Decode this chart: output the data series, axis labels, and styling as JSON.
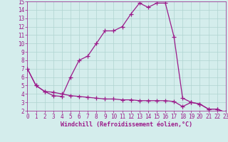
{
  "line1_x": [
    0,
    1,
    2,
    3,
    4,
    5,
    6,
    7,
    8,
    9,
    10,
    11,
    12,
    13,
    14,
    15,
    16,
    17,
    18,
    19,
    20,
    21,
    22,
    23
  ],
  "line1_y": [
    7.0,
    5.0,
    4.3,
    3.8,
    3.7,
    6.0,
    8.0,
    8.5,
    10.0,
    11.5,
    11.5,
    12.0,
    13.5,
    14.8,
    14.3,
    14.8,
    14.8,
    10.8,
    3.5,
    3.0,
    2.8,
    2.2,
    2.2,
    1.8
  ],
  "line2_x": [
    0,
    1,
    2,
    3,
    4,
    5,
    6,
    7,
    8,
    9,
    10,
    11,
    12,
    13,
    14,
    15,
    16,
    17,
    18,
    19,
    20,
    21,
    22,
    23
  ],
  "line2_y": [
    7.0,
    5.0,
    4.3,
    4.2,
    4.0,
    3.8,
    3.7,
    3.6,
    3.5,
    3.4,
    3.4,
    3.3,
    3.3,
    3.2,
    3.2,
    3.2,
    3.2,
    3.1,
    2.5,
    3.0,
    2.8,
    2.2,
    2.2,
    1.8
  ],
  "line_color": "#9b1a8a",
  "bg_color": "#d4edec",
  "grid_color": "#afd4d0",
  "xlabel": "Windchill (Refroidissement éolien,°C)",
  "ylim": [
    2,
    15
  ],
  "xlim": [
    0,
    23
  ],
  "yticks": [
    2,
    3,
    4,
    5,
    6,
    7,
    8,
    9,
    10,
    11,
    12,
    13,
    14,
    15
  ],
  "xticks": [
    0,
    1,
    2,
    3,
    4,
    5,
    6,
    7,
    8,
    9,
    10,
    11,
    12,
    13,
    14,
    15,
    16,
    17,
    18,
    19,
    20,
    21,
    22,
    23
  ],
  "line_color_hex": "#9b1a8a",
  "marker": "+",
  "linewidth": 0.9,
  "markersize": 4,
  "tick_fontsize": 5.5,
  "xlabel_fontsize": 6.0
}
